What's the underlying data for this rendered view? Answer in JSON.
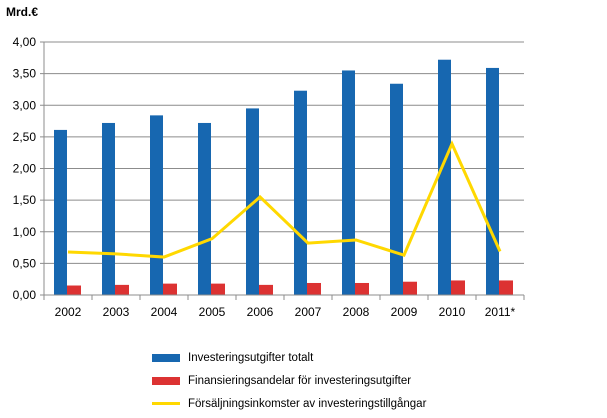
{
  "chart_data": {
    "type": "bar",
    "title": "",
    "ylabel": "Mrd.€",
    "xlabel": "",
    "ylim": [
      0,
      4
    ],
    "yticks": [
      "0,00",
      "0,50",
      "1,00",
      "1,50",
      "2,00",
      "2,50",
      "3,00",
      "3,50",
      "4,00"
    ],
    "grid": true,
    "legend_position": "bottom",
    "categories": [
      "2002",
      "2003",
      "2004",
      "2005",
      "2006",
      "2007",
      "2008",
      "2009",
      "2010",
      "2011*"
    ],
    "series": [
      {
        "name": "Investeringsutgifter totalt",
        "kind": "bar",
        "color": "#1767B0",
        "values": [
          2.61,
          2.72,
          2.84,
          2.72,
          2.95,
          3.23,
          3.55,
          3.34,
          3.72,
          3.59
        ]
      },
      {
        "name": "Finansieringsandelar för investeringsutgifter",
        "kind": "bar",
        "color": "#DC3232",
        "values": [
          0.15,
          0.16,
          0.18,
          0.18,
          0.16,
          0.19,
          0.19,
          0.21,
          0.23,
          0.23
        ]
      },
      {
        "name": "Försäljningsinkomster av investeringstillgångar",
        "kind": "line",
        "color": "#FFD800",
        "values": [
          0.68,
          0.65,
          0.6,
          0.89,
          1.55,
          0.82,
          0.87,
          0.63,
          2.39,
          0.69
        ]
      }
    ]
  }
}
